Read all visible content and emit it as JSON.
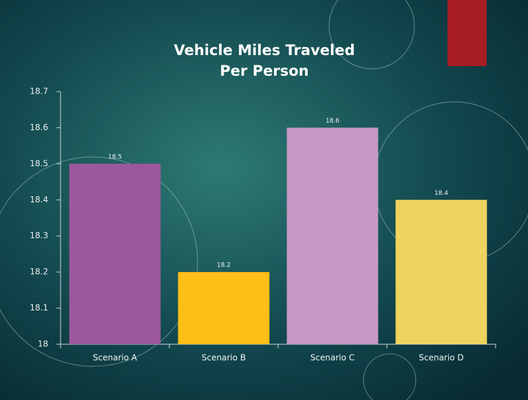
{
  "chart_data": {
    "type": "bar",
    "title": "Vehicle Miles Traveled Per Person",
    "categories": [
      "Scenario A",
      "Scenario B",
      "Scenario C",
      "Scenario D"
    ],
    "values": [
      18.5,
      18.2,
      18.6,
      18.4
    ],
    "colors": [
      "#9c589c",
      "#fdbe17",
      "#c699c4",
      "#efd35f"
    ],
    "ylim": [
      18,
      18.7
    ],
    "yticks": [
      {
        "value": 18,
        "label": "18"
      },
      18.1,
      18.2,
      18.3,
      18.4,
      18.5,
      18.6,
      18.7
    ],
    "grid": false
  }
}
